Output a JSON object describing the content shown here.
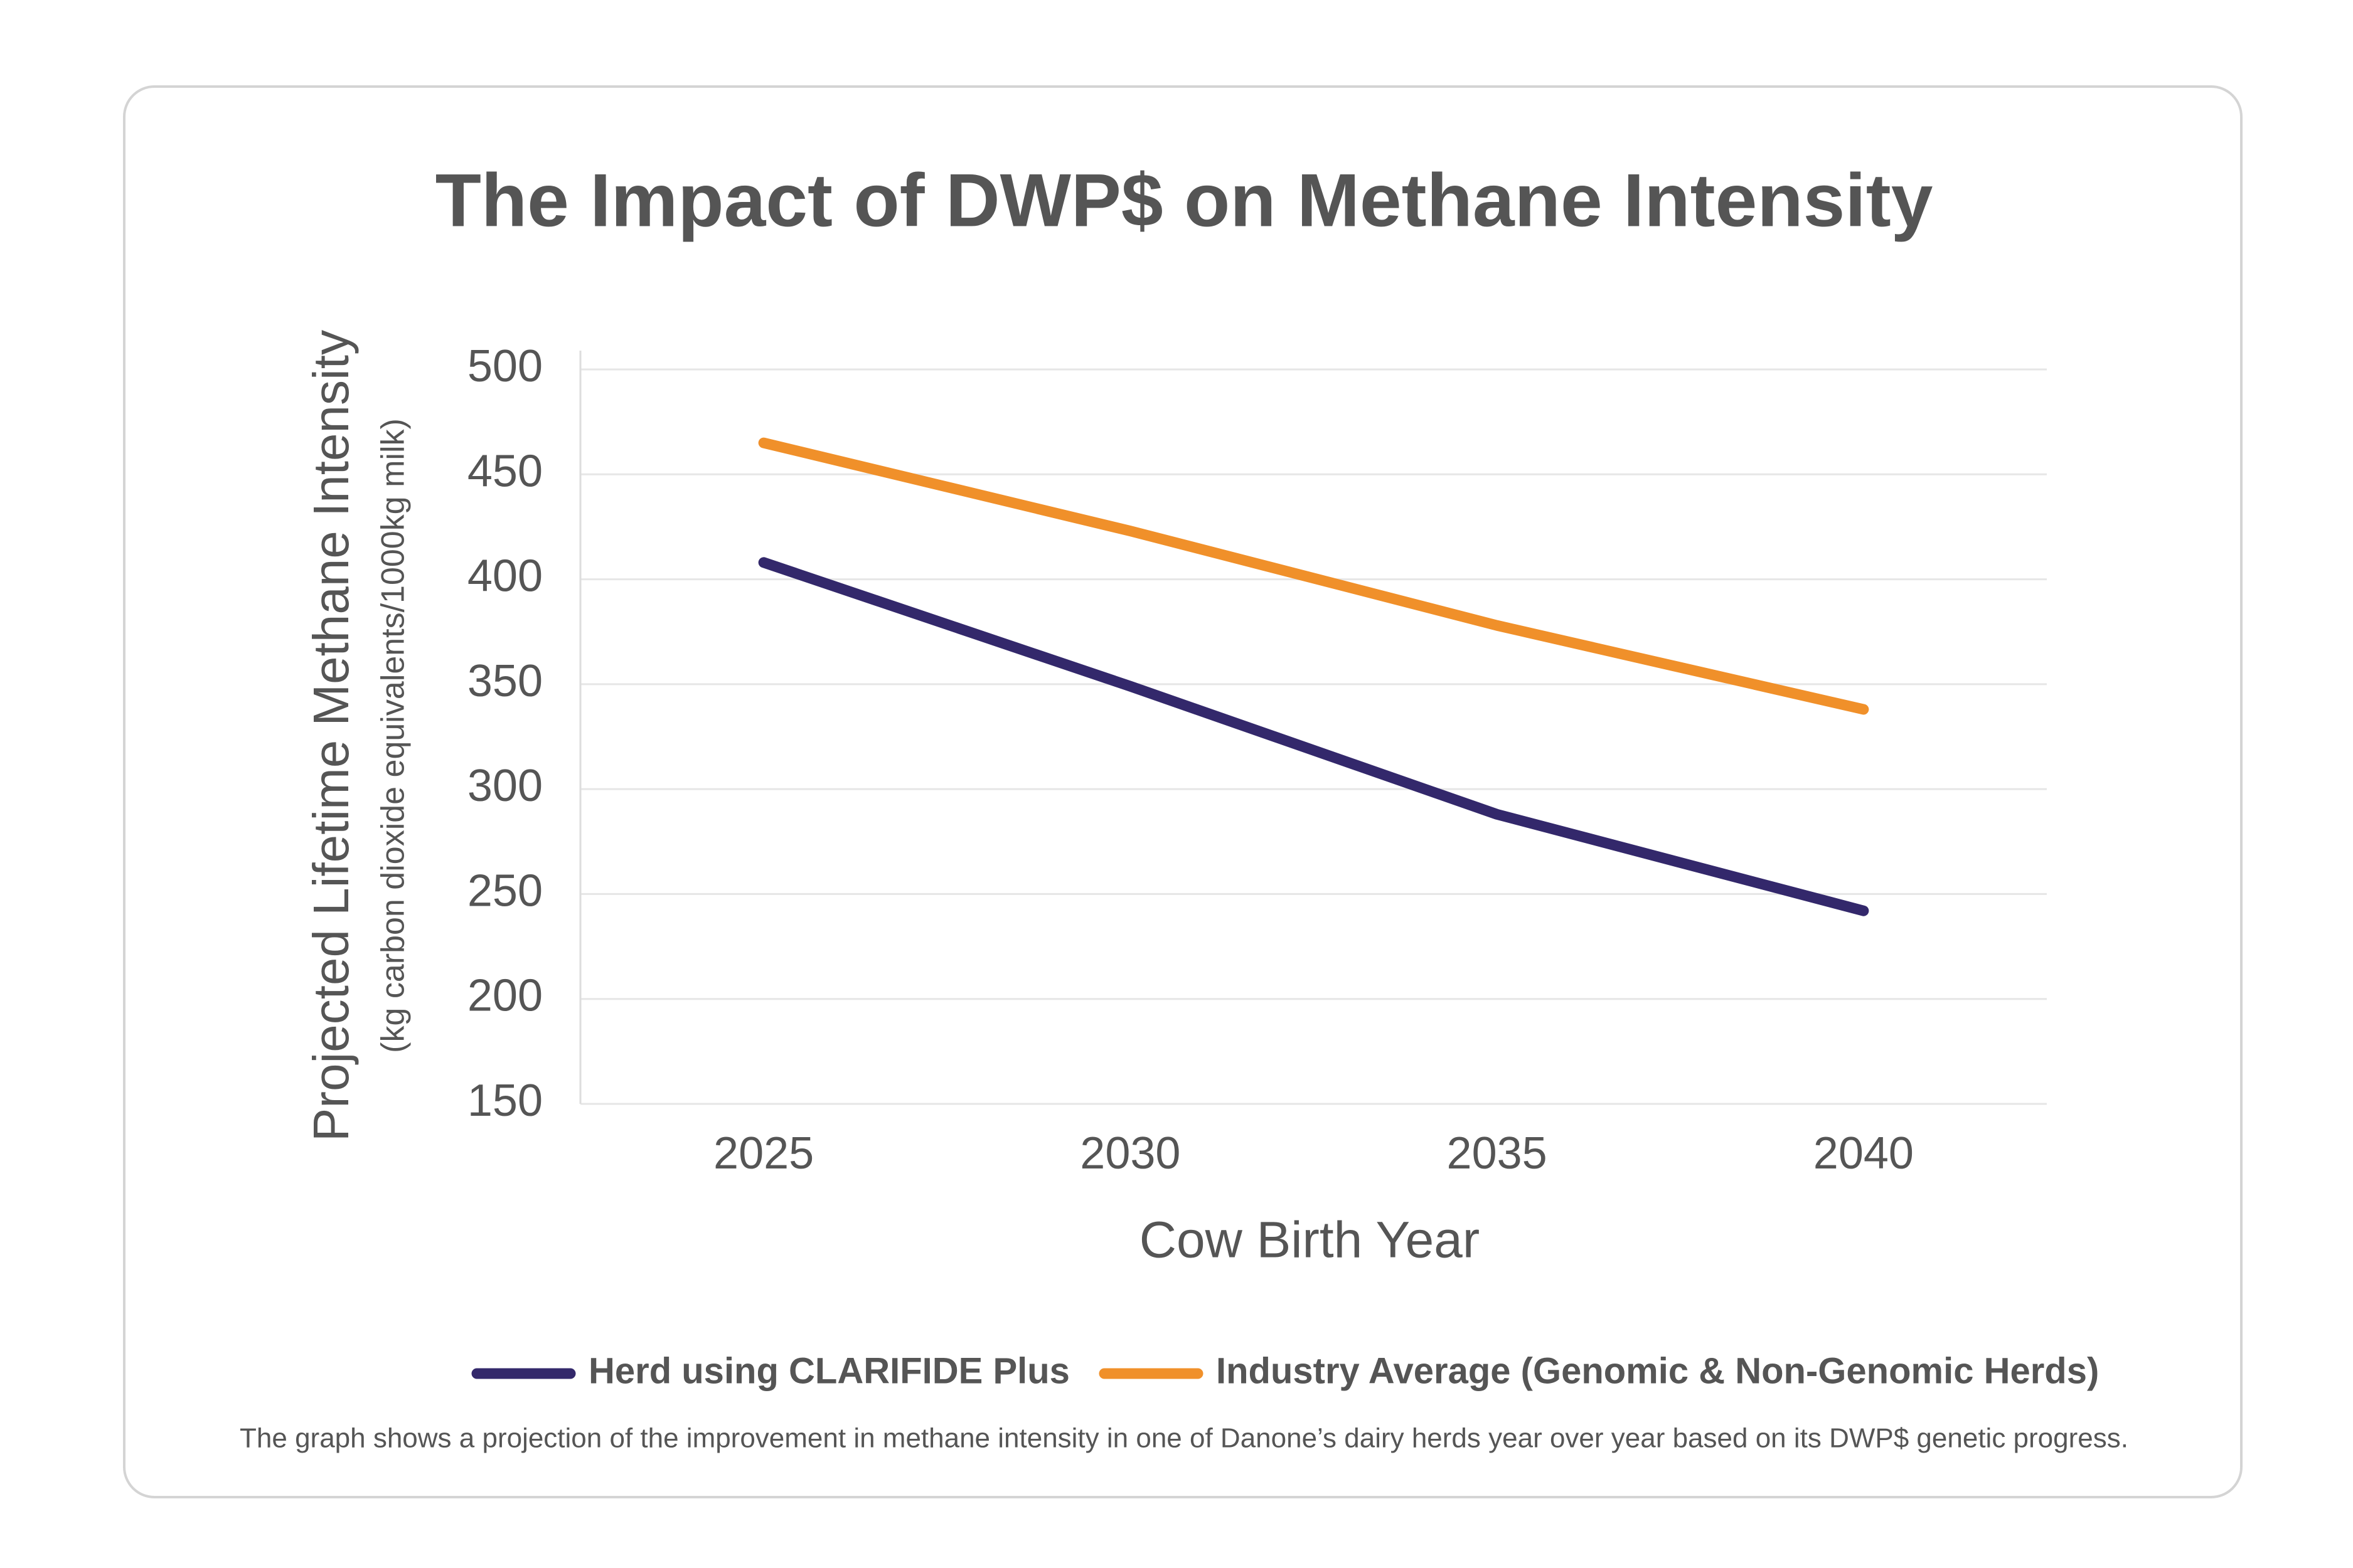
{
  "chart_data": {
    "type": "line",
    "title": "The Impact of DWP$ on Methane Intensity",
    "x_label": "Cow Birth Year",
    "y_label": "Projected Lifetime Methane Intensity",
    "y_label_note": "(kg carbon dioxide equivalents/1000kg milk)",
    "x": [
      2025,
      2030,
      2035,
      2040
    ],
    "series": [
      {
        "name": "Herd using CLARIFIDE Plus",
        "color": "#33286b",
        "values": [
          408,
          349,
          288,
          242
        ]
      },
      {
        "name": "Industry Average (Genomic & Non-Genomic Herds)",
        "color": "#f0902a",
        "values": [
          465,
          423,
          378,
          338
        ]
      }
    ],
    "xlim": [
      2022.5,
      2042.5
    ],
    "xticks": [
      2025,
      2030,
      2035,
      2040
    ],
    "ylim": [
      150,
      500
    ],
    "yticks": [
      150,
      200,
      250,
      300,
      350,
      400,
      450,
      500
    ],
    "grid": true,
    "legend": "bottom",
    "footnote": "The graph shows a projection of the improvement in methane intensity in one of Danone’s dairy herds year over year based on its DWP$ genetic progress."
  }
}
